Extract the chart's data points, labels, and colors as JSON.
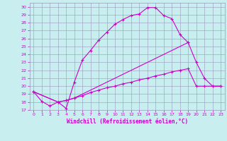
{
  "xlabel": "Windchill (Refroidissement éolien,°C)",
  "x_ticks": [
    0,
    1,
    2,
    3,
    4,
    5,
    6,
    7,
    8,
    9,
    10,
    11,
    12,
    13,
    14,
    15,
    16,
    17,
    18,
    19,
    20,
    21,
    22,
    23
  ],
  "ylim": [
    17,
    30.5
  ],
  "xlim": [
    -0.5,
    23.5
  ],
  "yticks": [
    17,
    18,
    19,
    20,
    21,
    22,
    23,
    24,
    25,
    26,
    27,
    28,
    29,
    30
  ],
  "bg_color": "#c8eef0",
  "grid_color": "#9999bb",
  "line_color": "#cc00cc",
  "line1_x": [
    0,
    1,
    2,
    3,
    4,
    5,
    6,
    7,
    8,
    9,
    10,
    11,
    12,
    13,
    14,
    15,
    16,
    17,
    18,
    19
  ],
  "line1_y": [
    19.3,
    18.1,
    17.5,
    18.0,
    17.2,
    20.5,
    23.3,
    24.5,
    25.8,
    26.8,
    27.8,
    28.4,
    28.9,
    29.1,
    29.9,
    29.9,
    28.9,
    28.5,
    26.5,
    25.5
  ],
  "line2_x": [
    0,
    3,
    4,
    5,
    19,
    20,
    21,
    22,
    23
  ],
  "line2_y": [
    19.3,
    18.0,
    18.2,
    18.5,
    25.5,
    23.0,
    21.0,
    20.0,
    20.0
  ],
  "line3_x": [
    0,
    3,
    4,
    5,
    6,
    7,
    8,
    9,
    10,
    11,
    12,
    13,
    14,
    15,
    16,
    17,
    18,
    19,
    20,
    21,
    22,
    23
  ],
  "line3_y": [
    19.3,
    18.0,
    18.2,
    18.5,
    18.8,
    19.2,
    19.5,
    19.8,
    20.0,
    20.3,
    20.5,
    20.8,
    21.0,
    21.3,
    21.5,
    21.8,
    22.0,
    22.2,
    20.0,
    20.0,
    20.0,
    20.0
  ]
}
